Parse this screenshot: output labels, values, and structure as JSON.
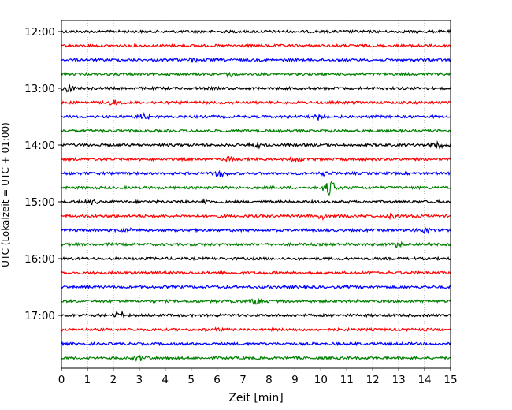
{
  "chart_data": {
    "type": "line",
    "title": "",
    "xlabel": "Zeit  [min]",
    "ylabel": "UTC (Lokalzeit = UTC + 01:00)",
    "xlim": [
      0,
      15
    ],
    "x_ticks": [
      "0",
      "1",
      "2",
      "3",
      "4",
      "5",
      "6",
      "7",
      "8",
      "9",
      "10",
      "11",
      "12",
      "13",
      "14",
      "15"
    ],
    "y_ticks": [
      {
        "label": "12:00",
        "trace_index": 0
      },
      {
        "label": "13:00",
        "trace_index": 4
      },
      {
        "label": "14:00",
        "trace_index": 8
      },
      {
        "label": "15:00",
        "trace_index": 12
      },
      {
        "label": "16:00",
        "trace_index": 16
      },
      {
        "label": "17:00",
        "trace_index": 20
      }
    ],
    "grid": "vertical dotted lines at each minute",
    "trace_interval_min": 15,
    "color_cycle": [
      "#000000",
      "#ff0000",
      "#0000ff",
      "#008000"
    ],
    "series": [
      {
        "start": "12:00",
        "events": []
      },
      {
        "start": "12:15",
        "events": []
      },
      {
        "start": "12:30",
        "events": [
          {
            "t": 5.0,
            "amp": 0.35
          }
        ]
      },
      {
        "start": "12:45",
        "events": [
          {
            "t": 6.5,
            "amp": 0.3
          }
        ]
      },
      {
        "start": "13:00",
        "events": [
          {
            "t": 0.25,
            "amp": 0.5
          }
        ]
      },
      {
        "start": "13:15",
        "events": [
          {
            "t": 2.0,
            "amp": 0.3
          }
        ]
      },
      {
        "start": "13:30",
        "events": [
          {
            "t": 3.2,
            "amp": 0.45
          },
          {
            "t": 10.0,
            "amp": 0.4
          }
        ]
      },
      {
        "start": "13:45",
        "events": []
      },
      {
        "start": "14:00",
        "events": [
          {
            "t": 7.5,
            "amp": 0.35
          },
          {
            "t": 14.5,
            "amp": 0.55
          }
        ]
      },
      {
        "start": "14:15",
        "events": [
          {
            "t": 6.4,
            "amp": 0.3
          },
          {
            "t": 9.0,
            "amp": 0.3
          }
        ]
      },
      {
        "start": "14:30",
        "events": [
          {
            "t": 6.1,
            "amp": 0.4
          },
          {
            "t": 10.2,
            "amp": 0.45
          }
        ]
      },
      {
        "start": "14:45",
        "events": [
          {
            "t": 10.35,
            "amp": 1.0
          }
        ]
      },
      {
        "start": "15:00",
        "events": [
          {
            "t": 1.2,
            "amp": 0.3
          },
          {
            "t": 5.5,
            "amp": 0.3
          }
        ]
      },
      {
        "start": "15:15",
        "events": [
          {
            "t": 10.1,
            "amp": 0.4
          },
          {
            "t": 12.8,
            "amp": 0.45
          }
        ]
      },
      {
        "start": "15:30",
        "events": [
          {
            "t": 2.5,
            "amp": 0.3
          },
          {
            "t": 14.0,
            "amp": 0.3
          }
        ]
      },
      {
        "start": "15:45",
        "events": [
          {
            "t": 13.0,
            "amp": 0.3
          }
        ]
      },
      {
        "start": "16:00",
        "events": []
      },
      {
        "start": "16:15",
        "events": [
          {
            "t": 12.5,
            "amp": 0.25
          }
        ]
      },
      {
        "start": "16:30",
        "events": []
      },
      {
        "start": "16:45",
        "events": [
          {
            "t": 7.5,
            "amp": 0.55
          }
        ]
      },
      {
        "start": "17:00",
        "events": [
          {
            "t": 2.2,
            "amp": 0.5
          }
        ]
      },
      {
        "start": "17:15",
        "events": [
          {
            "t": 6.0,
            "amp": 0.25
          }
        ]
      },
      {
        "start": "17:30",
        "events": []
      },
      {
        "start": "17:45",
        "events": [
          {
            "t": 3.0,
            "amp": 0.35
          }
        ]
      }
    ]
  }
}
